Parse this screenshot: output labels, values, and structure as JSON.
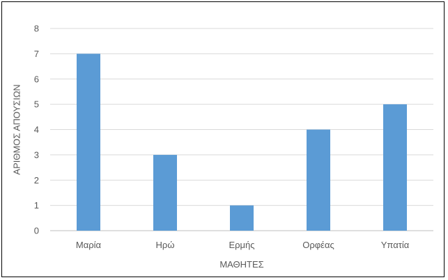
{
  "chart_data": {
    "type": "bar",
    "title": "",
    "categories": [
      "Μαρία",
      "Ηρώ",
      "Ερμής",
      "Ορφέας",
      "Υπατία"
    ],
    "values": [
      7,
      3,
      1,
      4,
      5
    ],
    "xlabel": "ΜΑΘΗΤΕΣ",
    "ylabel": "ΑΡΙΘΜΟΣ ΑΠΟΥΣΙΩΝ",
    "ylim": [
      0,
      8
    ],
    "yticks": [
      0,
      1,
      2,
      3,
      4,
      5,
      6,
      7,
      8
    ],
    "grid": true,
    "legend": "none",
    "colors": {
      "bar": "#5b9bd5"
    }
  }
}
